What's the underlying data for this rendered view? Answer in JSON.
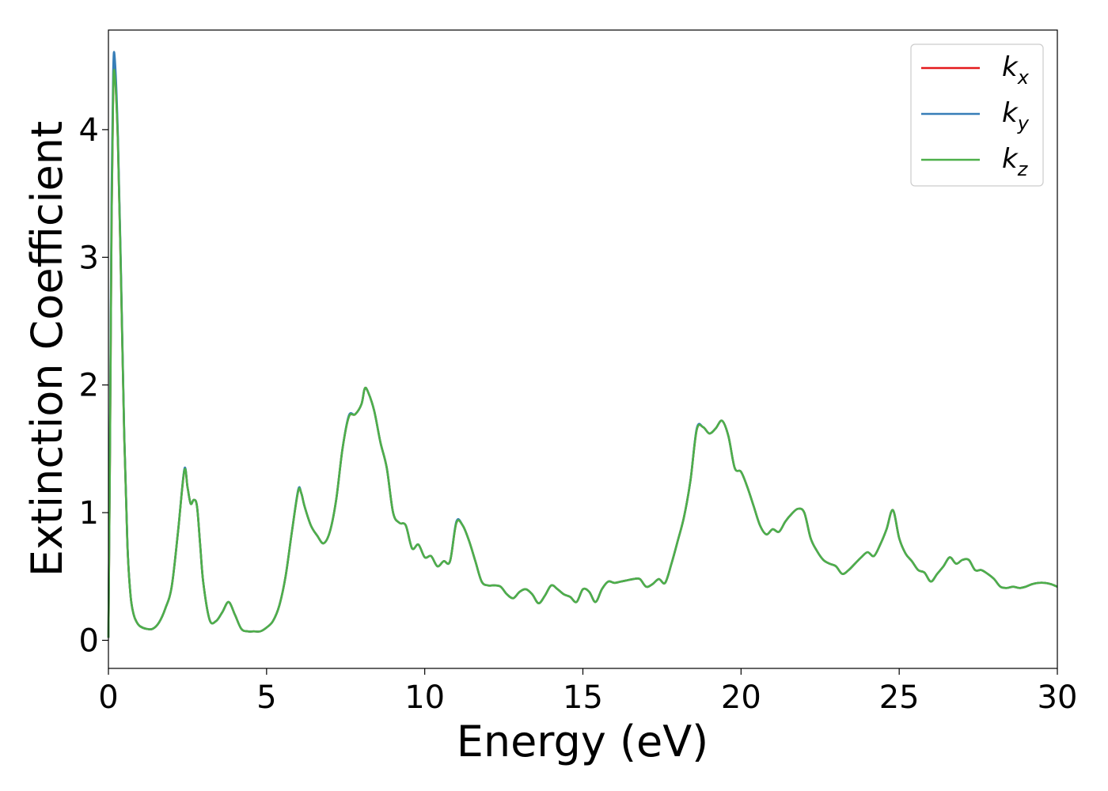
{
  "chart_data": {
    "type": "line",
    "title": "",
    "xlabel": "Energy (eV)",
    "ylabel": "Extinction Coefficient",
    "xlim": [
      0,
      30
    ],
    "ylim": [
      -0.22,
      4.78
    ],
    "xticks": [
      0,
      5,
      10,
      15,
      20,
      25,
      30
    ],
    "xtick_labels": [
      "0",
      "5",
      "10",
      "15",
      "20",
      "25",
      "30"
    ],
    "yticks": [
      0,
      1,
      2,
      3,
      4
    ],
    "ytick_labels": [
      "0",
      "1",
      "2",
      "3",
      "4"
    ],
    "grid": false,
    "legend_position": "top-right",
    "legend": [
      {
        "base": "k",
        "sub": "x",
        "color": "#e41a1c"
      },
      {
        "base": "k",
        "sub": "y",
        "color": "#377eb8"
      },
      {
        "base": "k",
        "sub": "z",
        "color": "#4daf4a"
      }
    ],
    "series": [
      {
        "name": "k_x",
        "color": "#e41a1c",
        "x": [
          0,
          0.05,
          0.1,
          0.15,
          0.2,
          0.3,
          0.4,
          0.5,
          0.6,
          0.7,
          0.8,
          0.9,
          1.0,
          1.2,
          1.4,
          1.6,
          1.8,
          2.0,
          2.2,
          2.4,
          2.5,
          2.6,
          2.7,
          2.8,
          2.9,
          3.0,
          3.2,
          3.4,
          3.6,
          3.8,
          4.0,
          4.2,
          4.4,
          4.6,
          4.8,
          5.0,
          5.2,
          5.4,
          5.6,
          5.8,
          6.0,
          6.1,
          6.2,
          6.4,
          6.6,
          6.8,
          7.0,
          7.2,
          7.4,
          7.6,
          7.8,
          8.0,
          8.1,
          8.2,
          8.4,
          8.6,
          8.8,
          9.0,
          9.2,
          9.4,
          9.6,
          9.8,
          10.0,
          10.2,
          10.4,
          10.6,
          10.8,
          11.0,
          11.2,
          11.4,
          11.6,
          11.8,
          12.0,
          12.2,
          12.4,
          12.6,
          12.8,
          13.0,
          13.2,
          13.4,
          13.6,
          13.8,
          14.0,
          14.2,
          14.4,
          14.6,
          14.8,
          15.0,
          15.2,
          15.4,
          15.6,
          15.8,
          16.0,
          16.2,
          16.4,
          16.6,
          16.8,
          17.0,
          17.2,
          17.4,
          17.6,
          17.8,
          18.0,
          18.2,
          18.4,
          18.6,
          18.8,
          19.0,
          19.2,
          19.4,
          19.6,
          19.8,
          20.0,
          20.2,
          20.4,
          20.6,
          20.8,
          21.0,
          21.2,
          21.4,
          21.6,
          21.8,
          22.0,
          22.2,
          22.4,
          22.6,
          22.8,
          23.0,
          23.2,
          23.4,
          23.6,
          23.8,
          24.0,
          24.2,
          24.4,
          24.6,
          24.8,
          25.0,
          25.2,
          25.4,
          25.6,
          25.8,
          26.0,
          26.2,
          26.4,
          26.6,
          26.8,
          27.0,
          27.2,
          27.4,
          27.6,
          27.8,
          28.0,
          28.2,
          28.4,
          28.6,
          28.8,
          29.0,
          29.2,
          29.4,
          29.6,
          29.8,
          30.0
        ],
        "y": [
          0.02,
          1.5,
          3.3,
          4.3,
          4.45,
          3.9,
          2.8,
          1.6,
          0.75,
          0.35,
          0.2,
          0.14,
          0.11,
          0.09,
          0.09,
          0.14,
          0.25,
          0.42,
          0.85,
          1.33,
          1.2,
          1.07,
          1.1,
          1.05,
          0.75,
          0.45,
          0.16,
          0.15,
          0.22,
          0.3,
          0.2,
          0.09,
          0.07,
          0.07,
          0.07,
          0.1,
          0.15,
          0.27,
          0.5,
          0.85,
          1.17,
          1.15,
          1.05,
          0.9,
          0.82,
          0.76,
          0.85,
          1.1,
          1.5,
          1.75,
          1.77,
          1.85,
          1.97,
          1.95,
          1.8,
          1.55,
          1.35,
          1.0,
          0.92,
          0.9,
          0.72,
          0.75,
          0.65,
          0.66,
          0.58,
          0.62,
          0.62,
          0.92,
          0.9,
          0.78,
          0.62,
          0.46,
          0.43,
          0.43,
          0.42,
          0.36,
          0.33,
          0.38,
          0.4,
          0.36,
          0.29,
          0.35,
          0.43,
          0.4,
          0.36,
          0.34,
          0.3,
          0.4,
          0.38,
          0.3,
          0.4,
          0.46,
          0.45,
          0.46,
          0.47,
          0.48,
          0.48,
          0.42,
          0.44,
          0.48,
          0.45,
          0.6,
          0.78,
          0.97,
          1.25,
          1.65,
          1.67,
          1.62,
          1.66,
          1.72,
          1.6,
          1.35,
          1.32,
          1.2,
          1.05,
          0.9,
          0.83,
          0.87,
          0.85,
          0.93,
          0.99,
          1.03,
          1.0,
          0.8,
          0.7,
          0.63,
          0.6,
          0.58,
          0.52,
          0.55,
          0.6,
          0.65,
          0.69,
          0.66,
          0.75,
          0.87,
          1.02,
          0.8,
          0.68,
          0.62,
          0.55,
          0.53,
          0.46,
          0.52,
          0.58,
          0.65,
          0.6,
          0.63,
          0.63,
          0.55,
          0.55,
          0.52,
          0.48,
          0.42,
          0.41,
          0.42,
          0.41,
          0.42,
          0.44,
          0.45,
          0.45,
          0.44,
          0.42
        ]
      },
      {
        "name": "k_y",
        "color": "#377eb8",
        "x": [
          0,
          0.05,
          0.1,
          0.15,
          0.2,
          0.3,
          0.4,
          0.5,
          0.6,
          0.7,
          0.8,
          0.9,
          1.0,
          1.2,
          1.4,
          1.6,
          1.8,
          2.0,
          2.2,
          2.4,
          2.5,
          2.6,
          2.7,
          2.8,
          2.9,
          3.0,
          3.2,
          3.4,
          3.6,
          3.8,
          4.0,
          4.2,
          4.4,
          4.6,
          4.8,
          5.0,
          5.2,
          5.4,
          5.6,
          5.8,
          6.0,
          6.1,
          6.2,
          6.4,
          6.6,
          6.8,
          7.0,
          7.2,
          7.4,
          7.6,
          7.8,
          8.0,
          8.1,
          8.2,
          8.4,
          8.6,
          8.8,
          9.0,
          9.2,
          9.4,
          9.6,
          9.8,
          10.0,
          10.2,
          10.4,
          10.6,
          10.8,
          11.0,
          11.2,
          11.4,
          11.6,
          11.8,
          12.0,
          12.2,
          12.4,
          12.6,
          12.8,
          13.0,
          13.2,
          13.4,
          13.6,
          13.8,
          14.0,
          14.2,
          14.4,
          14.6,
          14.8,
          15.0,
          15.2,
          15.4,
          15.6,
          15.8,
          16.0,
          16.2,
          16.4,
          16.6,
          16.8,
          17.0,
          17.2,
          17.4,
          17.6,
          17.8,
          18.0,
          18.2,
          18.4,
          18.6,
          18.8,
          19.0,
          19.2,
          19.4,
          19.6,
          19.8,
          20.0,
          20.2,
          20.4,
          20.6,
          20.8,
          21.0,
          21.2,
          21.4,
          21.6,
          21.8,
          22.0,
          22.2,
          22.4,
          22.6,
          22.8,
          23.0,
          23.2,
          23.4,
          23.6,
          23.8,
          24.0,
          24.2,
          24.4,
          24.6,
          24.8,
          25.0,
          25.2,
          25.4,
          25.6,
          25.8,
          26.0,
          26.2,
          26.4,
          26.6,
          26.8,
          27.0,
          27.2,
          27.4,
          27.6,
          27.8,
          28.0,
          28.2,
          28.4,
          28.6,
          28.8,
          29.0,
          29.2,
          29.4,
          29.6,
          29.8,
          30.0
        ],
        "y": [
          0.02,
          1.6,
          3.5,
          4.45,
          4.56,
          3.95,
          2.85,
          1.62,
          0.76,
          0.35,
          0.2,
          0.14,
          0.11,
          0.09,
          0.09,
          0.14,
          0.25,
          0.42,
          0.85,
          1.34,
          1.2,
          1.07,
          1.1,
          1.05,
          0.75,
          0.45,
          0.16,
          0.15,
          0.22,
          0.3,
          0.2,
          0.09,
          0.07,
          0.07,
          0.07,
          0.1,
          0.15,
          0.27,
          0.5,
          0.85,
          1.18,
          1.15,
          1.05,
          0.9,
          0.82,
          0.76,
          0.85,
          1.1,
          1.5,
          1.76,
          1.77,
          1.85,
          1.97,
          1.95,
          1.8,
          1.55,
          1.35,
          1.0,
          0.92,
          0.9,
          0.72,
          0.75,
          0.65,
          0.66,
          0.58,
          0.62,
          0.62,
          0.93,
          0.9,
          0.78,
          0.62,
          0.46,
          0.43,
          0.43,
          0.42,
          0.36,
          0.33,
          0.38,
          0.4,
          0.36,
          0.29,
          0.35,
          0.43,
          0.4,
          0.36,
          0.34,
          0.3,
          0.4,
          0.38,
          0.3,
          0.4,
          0.46,
          0.45,
          0.46,
          0.47,
          0.48,
          0.48,
          0.42,
          0.44,
          0.48,
          0.45,
          0.6,
          0.78,
          0.97,
          1.25,
          1.66,
          1.67,
          1.62,
          1.66,
          1.72,
          1.6,
          1.35,
          1.32,
          1.2,
          1.05,
          0.9,
          0.83,
          0.87,
          0.85,
          0.93,
          0.99,
          1.03,
          1.0,
          0.8,
          0.7,
          0.63,
          0.6,
          0.58,
          0.52,
          0.55,
          0.6,
          0.65,
          0.69,
          0.66,
          0.75,
          0.87,
          1.02,
          0.8,
          0.68,
          0.62,
          0.55,
          0.53,
          0.46,
          0.52,
          0.58,
          0.65,
          0.6,
          0.63,
          0.63,
          0.55,
          0.55,
          0.52,
          0.48,
          0.42,
          0.41,
          0.42,
          0.41,
          0.42,
          0.44,
          0.45,
          0.45,
          0.44,
          0.42
        ]
      },
      {
        "name": "k_z",
        "color": "#4daf4a",
        "x": [
          0,
          0.05,
          0.1,
          0.15,
          0.2,
          0.3,
          0.4,
          0.5,
          0.6,
          0.7,
          0.8,
          0.9,
          1.0,
          1.2,
          1.4,
          1.6,
          1.8,
          2.0,
          2.2,
          2.4,
          2.5,
          2.6,
          2.7,
          2.8,
          2.9,
          3.0,
          3.2,
          3.4,
          3.6,
          3.8,
          4.0,
          4.2,
          4.4,
          4.6,
          4.8,
          5.0,
          5.2,
          5.4,
          5.6,
          5.8,
          6.0,
          6.1,
          6.2,
          6.4,
          6.6,
          6.8,
          7.0,
          7.2,
          7.4,
          7.6,
          7.8,
          8.0,
          8.1,
          8.2,
          8.4,
          8.6,
          8.8,
          9.0,
          9.2,
          9.4,
          9.6,
          9.8,
          10.0,
          10.2,
          10.4,
          10.6,
          10.8,
          11.0,
          11.2,
          11.4,
          11.6,
          11.8,
          12.0,
          12.2,
          12.4,
          12.6,
          12.8,
          13.0,
          13.2,
          13.4,
          13.6,
          13.8,
          14.0,
          14.2,
          14.4,
          14.6,
          14.8,
          15.0,
          15.2,
          15.4,
          15.6,
          15.8,
          16.0,
          16.2,
          16.4,
          16.6,
          16.8,
          17.0,
          17.2,
          17.4,
          17.6,
          17.8,
          18.0,
          18.2,
          18.4,
          18.6,
          18.8,
          19.0,
          19.2,
          19.4,
          19.6,
          19.8,
          20.0,
          20.2,
          20.4,
          20.6,
          20.8,
          21.0,
          21.2,
          21.4,
          21.6,
          21.8,
          22.0,
          22.2,
          22.4,
          22.6,
          22.8,
          23.0,
          23.2,
          23.4,
          23.6,
          23.8,
          24.0,
          24.2,
          24.4,
          24.6,
          24.8,
          25.0,
          25.2,
          25.4,
          25.6,
          25.8,
          26.0,
          26.2,
          26.4,
          26.6,
          26.8,
          27.0,
          27.2,
          27.4,
          27.6,
          27.8,
          28.0,
          28.2,
          28.4,
          28.6,
          28.8,
          29.0,
          29.2,
          29.4,
          29.6,
          29.8,
          30.0
        ],
        "y": [
          0.02,
          1.5,
          3.3,
          4.3,
          4.43,
          3.9,
          2.8,
          1.6,
          0.75,
          0.35,
          0.2,
          0.14,
          0.11,
          0.09,
          0.09,
          0.14,
          0.25,
          0.42,
          0.85,
          1.33,
          1.2,
          1.07,
          1.1,
          1.05,
          0.75,
          0.45,
          0.16,
          0.15,
          0.22,
          0.3,
          0.2,
          0.09,
          0.07,
          0.07,
          0.07,
          0.1,
          0.15,
          0.27,
          0.5,
          0.85,
          1.17,
          1.15,
          1.05,
          0.9,
          0.82,
          0.76,
          0.85,
          1.1,
          1.5,
          1.75,
          1.77,
          1.85,
          1.97,
          1.95,
          1.8,
          1.55,
          1.35,
          1.0,
          0.92,
          0.9,
          0.72,
          0.75,
          0.65,
          0.66,
          0.58,
          0.62,
          0.62,
          0.92,
          0.9,
          0.78,
          0.62,
          0.46,
          0.43,
          0.43,
          0.42,
          0.36,
          0.33,
          0.38,
          0.4,
          0.36,
          0.29,
          0.35,
          0.43,
          0.4,
          0.36,
          0.34,
          0.3,
          0.4,
          0.38,
          0.3,
          0.4,
          0.46,
          0.45,
          0.46,
          0.47,
          0.48,
          0.48,
          0.42,
          0.44,
          0.48,
          0.45,
          0.6,
          0.78,
          0.97,
          1.25,
          1.65,
          1.67,
          1.62,
          1.66,
          1.72,
          1.6,
          1.35,
          1.32,
          1.2,
          1.05,
          0.9,
          0.83,
          0.87,
          0.85,
          0.93,
          0.99,
          1.03,
          1.0,
          0.8,
          0.7,
          0.63,
          0.6,
          0.58,
          0.52,
          0.55,
          0.6,
          0.65,
          0.69,
          0.66,
          0.75,
          0.87,
          1.02,
          0.8,
          0.68,
          0.62,
          0.55,
          0.53,
          0.46,
          0.52,
          0.58,
          0.65,
          0.6,
          0.63,
          0.63,
          0.55,
          0.55,
          0.52,
          0.48,
          0.42,
          0.41,
          0.42,
          0.41,
          0.42,
          0.44,
          0.45,
          0.45,
          0.44,
          0.42
        ]
      }
    ]
  }
}
